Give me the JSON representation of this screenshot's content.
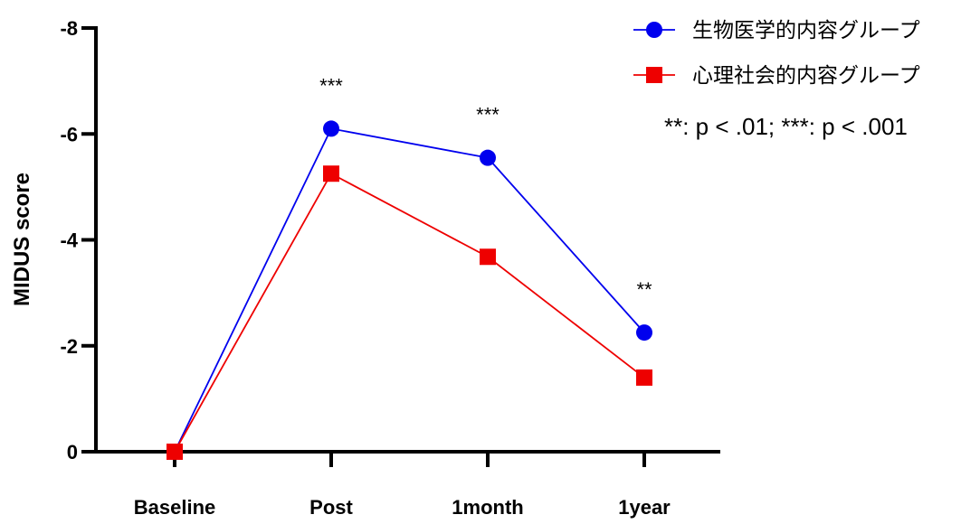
{
  "chart_data": {
    "type": "line",
    "title": "",
    "xlabel": "",
    "ylabel": "MIDUS score",
    "categories": [
      "Baseline",
      "Post",
      "1month",
      "1year"
    ],
    "ylim": [
      0,
      -8
    ],
    "y_reversed": true,
    "yticks": [
      0,
      -2,
      -4,
      -6,
      -8
    ],
    "ytick_labels": [
      "0",
      "-2",
      "-4",
      "-6",
      "-8"
    ],
    "grid": false,
    "legend_position": "top-right",
    "series": [
      {
        "name": "生物医学的内容グループ",
        "values": [
          0,
          -6.1,
          -5.55,
          -2.25
        ],
        "color": "#0000ee",
        "marker": "circle"
      },
      {
        "name": "心理社会的内容グループ",
        "values": [
          0,
          -5.25,
          -3.68,
          -1.4
        ],
        "color": "#ee0000",
        "marker": "square"
      }
    ],
    "significance": [
      {
        "category": "Post",
        "label": "***"
      },
      {
        "category": "1month",
        "label": "***"
      },
      {
        "category": "1year",
        "label": "**"
      }
    ],
    "note": "**: p < .01; ***: p < .001"
  }
}
